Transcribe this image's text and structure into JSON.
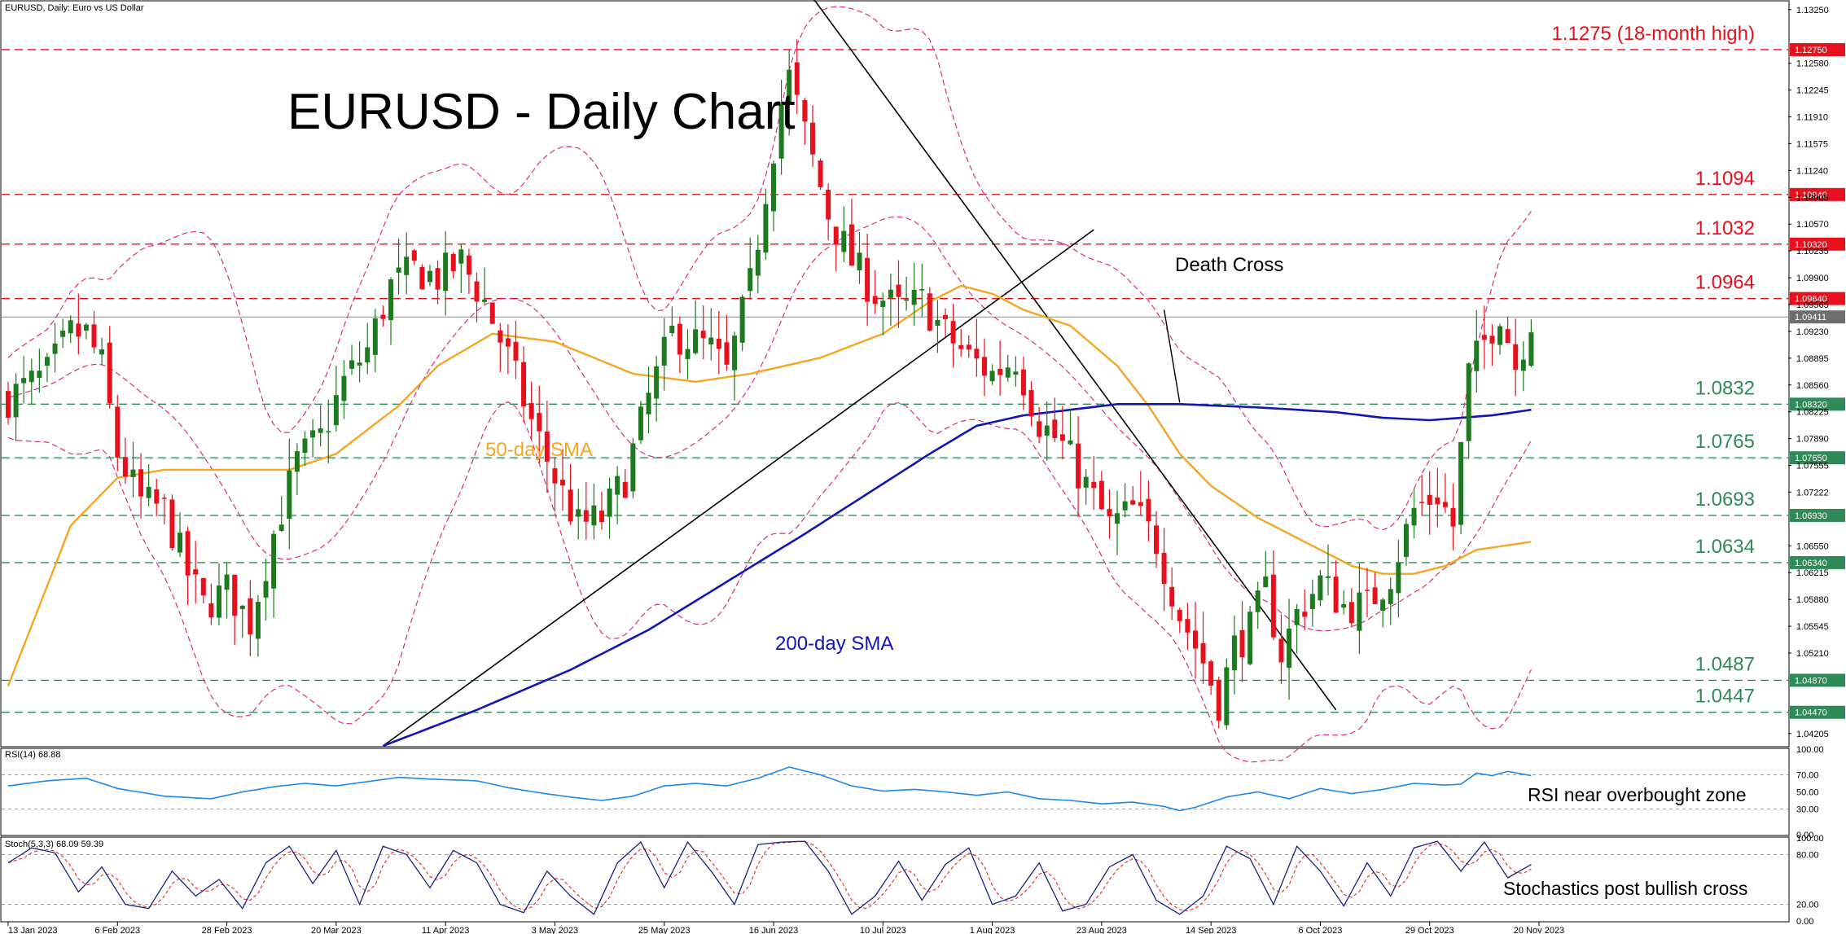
{
  "header": {
    "symbol_label": "EURUSD, Daily:  Euro vs US Dollar",
    "rsi_label": "RSI(14) 68.88",
    "stoch_label": "Stoch(5,3,3) 68.09 59.39"
  },
  "colors": {
    "bull": "#1e7a1e",
    "bear": "#e8101c",
    "sma50": "#f5a623",
    "sma200": "#1414b4",
    "bollinger": "#d8308a",
    "resistance": "#e8101c",
    "support": "#2e8b57",
    "rsi": "#1e88e5",
    "stoch_main": "#1a237e",
    "stoch_signal": "#e53935"
  },
  "chart_data": [
    {
      "type": "candlestick",
      "title": "EURUSD - Daily Chart",
      "x_tick_labels": [
        "13 Jan 2023",
        "6 Feb 2023",
        "28 Feb 2023",
        "20 Mar 2023",
        "11 Apr 2023",
        "3 May 2023",
        "25 May 2023",
        "16 Jun 2023",
        "10 Jul 2023",
        "1 Aug 2023",
        "23 Aug 2023",
        "14 Sep 2023",
        "6 Oct 2023",
        "29 Oct 2023",
        "20 Nov 2023"
      ],
      "y_tick_labels": [
        "1.13250",
        "1.12580",
        "1.12245",
        "1.11910",
        "1.11575",
        "1.11240",
        "1.10905",
        "1.10570",
        "1.10235",
        "1.09900",
        "1.09565",
        "1.09230",
        "1.08895",
        "1.08560",
        "1.08225",
        "1.07890",
        "1.07555",
        "1.07222",
        "1.06550",
        "1.06215",
        "1.05880",
        "1.05545",
        "1.05210",
        "1.04205"
      ],
      "ylim": [
        1.0405,
        1.1335
      ],
      "levels": [
        {
          "value": 1.1275,
          "axis_tag": "1.12750",
          "label": "1.1275 (18-month high)",
          "kind": "resistance"
        },
        {
          "value": 1.1094,
          "axis_tag": "1.10940",
          "label": "1.1094",
          "kind": "resistance"
        },
        {
          "value": 1.1032,
          "axis_tag": "1.10320",
          "label": "1.1032",
          "kind": "resistance"
        },
        {
          "value": 1.0964,
          "axis_tag": "1.09640",
          "label": "1.0964",
          "kind": "resistance"
        },
        {
          "value": 1.0832,
          "axis_tag": "1.08320",
          "label": "1.0832",
          "kind": "support"
        },
        {
          "value": 1.0765,
          "axis_tag": "1.07650",
          "label": "1.0765",
          "kind": "support"
        },
        {
          "value": 1.0693,
          "axis_tag": "1.06930",
          "label": "1.0693",
          "kind": "support"
        },
        {
          "value": 1.0634,
          "axis_tag": "1.06340",
          "label": "1.0634",
          "kind": "support"
        },
        {
          "value": 1.0487,
          "axis_tag": "1.04870",
          "label": "1.0487",
          "kind": "support"
        },
        {
          "value": 1.0447,
          "axis_tag": "1.04470",
          "label": "1.0447",
          "kind": "support"
        }
      ],
      "current_price": {
        "value": 1.0941,
        "axis_tag": "1.09411"
      },
      "annotations": {
        "sma50": "50-day SMA",
        "sma200": "200-day SMA",
        "death_cross": "Death Cross"
      },
      "close_anchors": [
        [
          0,
          1.084
        ],
        [
          5,
          1.087
        ],
        [
          8,
          1.092
        ],
        [
          10,
          1.092
        ],
        [
          12,
          1.088
        ],
        [
          14,
          1.077
        ],
        [
          17,
          1.071
        ],
        [
          20,
          1.07
        ],
        [
          23,
          1.062
        ],
        [
          25,
          1.058
        ],
        [
          28,
          1.06
        ],
        [
          31,
          1.056
        ],
        [
          34,
          1.067
        ],
        [
          37,
          1.076
        ],
        [
          40,
          1.079
        ],
        [
          43,
          1.086
        ],
        [
          46,
          1.09
        ],
        [
          49,
          1.098
        ],
        [
          52,
          1.1
        ],
        [
          55,
          1.099
        ],
        [
          58,
          1.101
        ],
        [
          61,
          1.096
        ],
        [
          64,
          1.089
        ],
        [
          67,
          1.081
        ],
        [
          70,
          1.074
        ],
        [
          73,
          1.068
        ],
        [
          76,
          1.069
        ],
        [
          79,
          1.074
        ],
        [
          82,
          1.084
        ],
        [
          85,
          1.092
        ],
        [
          88,
          1.091
        ],
        [
          90,
          1.09
        ],
        [
          92,
          1.087
        ],
        [
          95,
          1.098
        ],
        [
          97,
          1.11
        ],
        [
          99,
          1.121
        ],
        [
          100,
          1.124
        ],
        [
          102,
          1.117
        ],
        [
          105,
          1.107
        ],
        [
          108,
          1.101
        ],
        [
          111,
          1.097
        ],
        [
          114,
          1.095
        ],
        [
          117,
          1.096
        ],
        [
          120,
          1.092
        ],
        [
          123,
          1.089
        ],
        [
          126,
          1.087
        ],
        [
          129,
          1.089
        ],
        [
          132,
          1.081
        ],
        [
          135,
          1.078
        ],
        [
          138,
          1.073
        ],
        [
          141,
          1.068
        ],
        [
          144,
          1.07
        ],
        [
          147,
          1.066
        ],
        [
          150,
          1.057
        ],
        [
          153,
          1.051
        ],
        [
          155,
          1.046
        ],
        [
          157,
          1.053
        ],
        [
          159,
          1.055
        ],
        [
          161,
          1.06
        ],
        [
          163,
          1.052
        ],
        [
          165,
          1.057
        ],
        [
          168,
          1.061
        ],
        [
          171,
          1.058
        ],
        [
          174,
          1.058
        ],
        [
          177,
          1.062
        ],
        [
          180,
          1.07
        ],
        [
          183,
          1.072
        ],
        [
          185,
          1.068
        ],
        [
          187,
          1.087
        ],
        [
          189,
          1.091
        ],
        [
          191,
          1.095
        ],
        [
          193,
          1.088
        ],
        [
          195,
          1.094
        ]
      ],
      "sma50_anchors": [
        [
          0,
          1.048
        ],
        [
          8,
          1.068
        ],
        [
          14,
          1.074
        ],
        [
          20,
          1.075
        ],
        [
          30,
          1.075
        ],
        [
          36,
          1.075
        ],
        [
          42,
          1.077
        ],
        [
          50,
          1.083
        ],
        [
          55,
          1.088
        ],
        [
          62,
          1.092
        ],
        [
          70,
          1.091
        ],
        [
          80,
          1.087
        ],
        [
          88,
          1.086
        ],
        [
          95,
          1.087
        ],
        [
          104,
          1.089
        ],
        [
          112,
          1.092
        ],
        [
          118,
          1.096
        ],
        [
          122,
          1.098
        ],
        [
          126,
          1.097
        ],
        [
          130,
          1.095
        ],
        [
          136,
          1.093
        ],
        [
          142,
          1.088
        ],
        [
          146,
          1.083
        ],
        [
          150,
          1.077
        ],
        [
          154,
          1.073
        ],
        [
          160,
          1.069
        ],
        [
          166,
          1.066
        ],
        [
          172,
          1.063
        ],
        [
          176,
          1.062
        ],
        [
          180,
          1.062
        ],
        [
          184,
          1.063
        ],
        [
          188,
          1.065
        ],
        [
          195,
          1.066
        ]
      ],
      "sma200_anchors": [
        [
          48,
          1.0405
        ],
        [
          60,
          1.045
        ],
        [
          72,
          1.05
        ],
        [
          82,
          1.055
        ],
        [
          92,
          1.061
        ],
        [
          102,
          1.067
        ],
        [
          110,
          1.072
        ],
        [
          118,
          1.077
        ],
        [
          124,
          1.0805
        ],
        [
          130,
          1.0818
        ],
        [
          136,
          1.0825
        ],
        [
          142,
          1.0832
        ],
        [
          150,
          1.0832
        ],
        [
          160,
          1.0828
        ],
        [
          170,
          1.0822
        ],
        [
          176,
          1.0815
        ],
        [
          182,
          1.0812
        ],
        [
          190,
          1.0818
        ],
        [
          195,
          1.0825
        ]
      ],
      "trend_lines": [
        {
          "from": [
            48,
            1.0405
          ],
          "to": [
            139,
            1.105
          ],
          "name": "uptrend"
        },
        {
          "from": [
            103,
            1.134
          ],
          "to": [
            170,
            1.045
          ],
          "name": "downtrend"
        }
      ],
      "death_cross_pointer": {
        "from": [
          148,
          1.095
        ],
        "to": [
          150,
          1.0834
        ]
      }
    },
    {
      "type": "line",
      "name": "RSI(14)",
      "last_value": 68.88,
      "ylim": [
        0,
        100
      ],
      "y_tick_labels": [
        "100.00",
        "70.00",
        "50.00",
        "30.00",
        "0.00"
      ],
      "annotation": "RSI near overbought zone",
      "anchors": [
        [
          0,
          57
        ],
        [
          5,
          63
        ],
        [
          10,
          66
        ],
        [
          14,
          54
        ],
        [
          20,
          45
        ],
        [
          26,
          42
        ],
        [
          30,
          50
        ],
        [
          34,
          56
        ],
        [
          38,
          60
        ],
        [
          42,
          57
        ],
        [
          46,
          62
        ],
        [
          50,
          67
        ],
        [
          54,
          65
        ],
        [
          60,
          63
        ],
        [
          64,
          55
        ],
        [
          68,
          49
        ],
        [
          72,
          44
        ],
        [
          76,
          40
        ],
        [
          80,
          45
        ],
        [
          84,
          57
        ],
        [
          88,
          60
        ],
        [
          92,
          57
        ],
        [
          96,
          66
        ],
        [
          100,
          79
        ],
        [
          104,
          70
        ],
        [
          108,
          57
        ],
        [
          112,
          51
        ],
        [
          116,
          53
        ],
        [
          120,
          50
        ],
        [
          124,
          46
        ],
        [
          128,
          50
        ],
        [
          132,
          42
        ],
        [
          136,
          40
        ],
        [
          140,
          36
        ],
        [
          144,
          38
        ],
        [
          148,
          33
        ],
        [
          150,
          28
        ],
        [
          152,
          32
        ],
        [
          156,
          44
        ],
        [
          160,
          50
        ],
        [
          164,
          42
        ],
        [
          168,
          54
        ],
        [
          172,
          48
        ],
        [
          176,
          53
        ],
        [
          180,
          60
        ],
        [
          184,
          58
        ],
        [
          186,
          59
        ],
        [
          188,
          72
        ],
        [
          190,
          69
        ],
        [
          192,
          74
        ],
        [
          195,
          69
        ]
      ]
    },
    {
      "type": "line",
      "name": "Stoch(5,3,3)",
      "values": [
        68.09,
        59.39
      ],
      "ylim": [
        0,
        100
      ],
      "y_tick_labels": [
        "100.00",
        "80.00",
        "20.00",
        "0.00"
      ],
      "annotation": "Stochastics post bullish cross",
      "anchors": [
        [
          0,
          70
        ],
        [
          3,
          88
        ],
        [
          6,
          82
        ],
        [
          9,
          35
        ],
        [
          12,
          65
        ],
        [
          15,
          20
        ],
        [
          18,
          15
        ],
        [
          21,
          60
        ],
        [
          24,
          30
        ],
        [
          27,
          50
        ],
        [
          30,
          15
        ],
        [
          33,
          70
        ],
        [
          36,
          90
        ],
        [
          39,
          45
        ],
        [
          42,
          85
        ],
        [
          45,
          20
        ],
        [
          48,
          90
        ],
        [
          51,
          80
        ],
        [
          54,
          40
        ],
        [
          57,
          85
        ],
        [
          60,
          70
        ],
        [
          63,
          20
        ],
        [
          66,
          10
        ],
        [
          69,
          60
        ],
        [
          72,
          30
        ],
        [
          75,
          8
        ],
        [
          78,
          70
        ],
        [
          81,
          95
        ],
        [
          84,
          40
        ],
        [
          87,
          95
        ],
        [
          90,
          60
        ],
        [
          93,
          20
        ],
        [
          96,
          92
        ],
        [
          99,
          95
        ],
        [
          102,
          96
        ],
        [
          105,
          60
        ],
        [
          108,
          8
        ],
        [
          111,
          30
        ],
        [
          114,
          72
        ],
        [
          117,
          25
        ],
        [
          120,
          68
        ],
        [
          123,
          88
        ],
        [
          126,
          20
        ],
        [
          129,
          30
        ],
        [
          132,
          70
        ],
        [
          135,
          12
        ],
        [
          138,
          20
        ],
        [
          141,
          65
        ],
        [
          144,
          80
        ],
        [
          147,
          25
        ],
        [
          150,
          8
        ],
        [
          153,
          30
        ],
        [
          156,
          90
        ],
        [
          159,
          75
        ],
        [
          162,
          20
        ],
        [
          165,
          90
        ],
        [
          168,
          60
        ],
        [
          171,
          18
        ],
        [
          174,
          70
        ],
        [
          177,
          30
        ],
        [
          180,
          88
        ],
        [
          183,
          96
        ],
        [
          186,
          60
        ],
        [
          189,
          95
        ],
        [
          192,
          52
        ],
        [
          195,
          68
        ]
      ]
    }
  ]
}
